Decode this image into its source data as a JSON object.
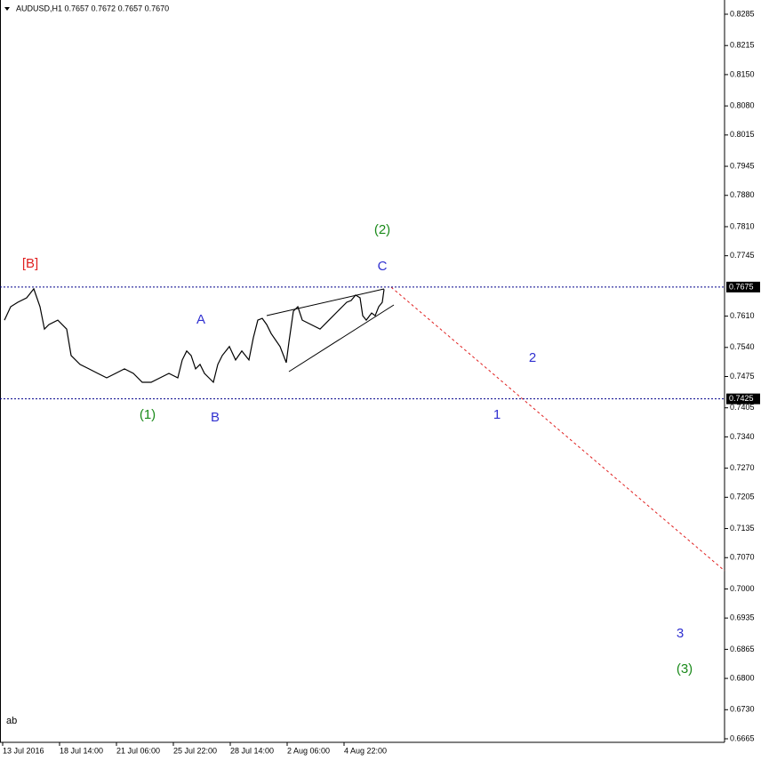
{
  "chart_data": {
    "type": "line",
    "title": "AUDUSD,H1  0.7657 0.7672 0.7657 0.7670",
    "corner_text": "ab",
    "color": "#000000",
    "x": [
      2,
      9,
      17,
      27,
      35,
      42,
      47,
      52,
      62,
      72,
      77,
      87,
      97,
      107,
      117,
      127,
      137,
      147,
      157,
      167,
      177,
      187,
      197,
      202,
      207,
      212,
      217,
      222,
      227,
      232,
      237,
      242,
      247,
      255,
      262,
      269,
      277,
      282,
      287,
      292,
      297,
      302,
      312,
      319,
      322,
      327,
      332,
      337,
      347,
      357,
      367,
      377,
      382,
      387,
      392,
      397,
      402,
      405,
      409,
      415,
      419,
      423,
      427,
      429
    ],
    "values": [
      0.7601,
      0.7631,
      0.7641,
      0.7651,
      0.7671,
      0.7631,
      0.7581,
      0.7591,
      0.7601,
      0.7581,
      0.7522,
      0.7502,
      0.7492,
      0.7482,
      0.7472,
      0.7482,
      0.7492,
      0.7482,
      0.7462,
      0.7462,
      0.7472,
      0.7482,
      0.7472,
      0.7512,
      0.7532,
      0.7522,
      0.7492,
      0.7502,
      0.7482,
      0.7472,
      0.7462,
      0.7502,
      0.7522,
      0.7542,
      0.7512,
      0.7532,
      0.7512,
      0.7562,
      0.7601,
      0.7605,
      0.7591,
      0.7571,
      0.7542,
      0.7506,
      0.7552,
      0.7621,
      0.7631,
      0.7601,
      0.7591,
      0.7581,
      0.7601,
      0.7621,
      0.7631,
      0.7641,
      0.7645,
      0.7657,
      0.7651,
      0.7611,
      0.7601,
      0.7617,
      0.7611,
      0.7631,
      0.7641,
      0.767
    ],
    "xlim": [
      0,
      812
    ],
    "ylim": [
      0.6665,
      0.8285
    ],
    "xticks": [
      {
        "value": 0,
        "label": "13 Jul 2016"
      },
      {
        "value": 64,
        "label": "18 Jul 14:00"
      },
      {
        "value": 128,
        "label": "21 Jul 06:00"
      },
      {
        "value": 192,
        "label": "25 Jul 22:00"
      },
      {
        "value": 256,
        "label": "28 Jul 14:00"
      },
      {
        "value": 320,
        "label": "2 Aug 06:00"
      },
      {
        "value": 384,
        "label": "4 Aug 22:00"
      }
    ],
    "yticks": [
      0.8285,
      0.8215,
      {
        "value": 0.815,
        "label": "0.8150"
      },
      {
        "value": 0.808,
        "label": "0.8080"
      },
      0.8015,
      0.7945,
      {
        "value": 0.788,
        "label": "0.7880"
      },
      {
        "value": 0.781,
        "label": "0.7810"
      },
      0.7745,
      {
        "value": 0.761,
        "label": "0.7610"
      },
      {
        "value": 0.754,
        "label": "0.7540"
      },
      0.7475,
      0.7405,
      {
        "value": 0.734,
        "label": "0.7340"
      },
      {
        "value": 0.727,
        "label": "0.7270"
      },
      0.7205,
      0.7135,
      {
        "value": 0.707,
        "label": "0.7070"
      },
      {
        "value": 0.7,
        "label": "0.7000"
      },
      0.6935,
      0.6865,
      {
        "value": 0.68,
        "label": "0.6800"
      },
      {
        "value": 0.673,
        "label": "0.6730"
      },
      0.6665
    ],
    "levels": [
      0.7675,
      0.7425
    ],
    "level_color": "#00008b",
    "annotations": [
      {
        "text": "[B]",
        "color": "#e02020"
      },
      {
        "text": "A",
        "color": "#3030d0"
      },
      {
        "text": "(1)",
        "color": "#1a8a1a"
      },
      {
        "text": "B",
        "color": "#3030d0"
      },
      {
        "text": "(2)",
        "color": "#1a8a1a"
      },
      {
        "text": "C",
        "color": "#3030d0"
      },
      {
        "text": "2",
        "color": "#3030d0"
      },
      {
        "text": "1",
        "color": "#3030d0"
      },
      {
        "text": "3",
        "color": "#3030d0"
      },
      {
        "text": "(3)",
        "color": "#1a8a1a"
      }
    ]
  }
}
